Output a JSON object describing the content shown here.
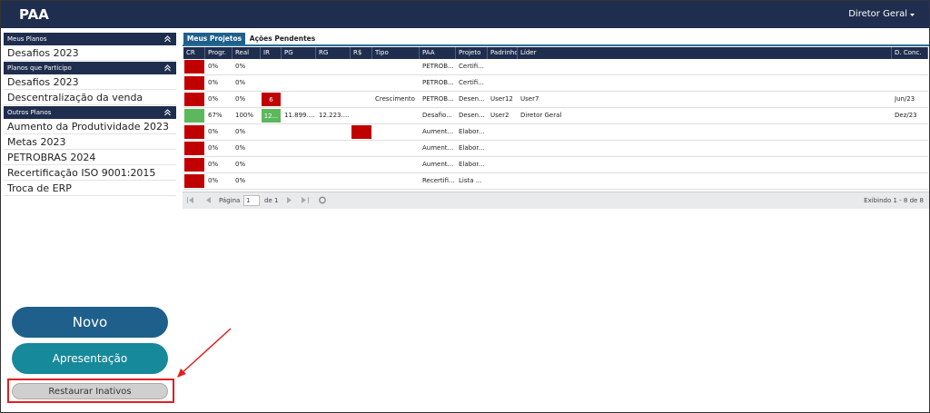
{
  "header": {
    "title": "PAA",
    "user": "Diretor Geral"
  },
  "sidebar": {
    "sections": [
      {
        "title": "Meus Planos",
        "items": [
          "Desafios 2023"
        ]
      },
      {
        "title": "Planos que Participo",
        "items": [
          "Desafios 2023",
          "Descentralização da venda"
        ]
      },
      {
        "title": "Outros Planos",
        "items": [
          "Aumento da Produtividade 2023",
          "Metas 2023",
          "PETROBRAS 2024",
          "Recertificação ISO 9001:2015",
          "Troca de ERP"
        ]
      }
    ]
  },
  "tabs": [
    "Meus Projetos",
    "Ações Pendentes"
  ],
  "table": {
    "columns": [
      "CR",
      "Progr.",
      "Real",
      "IR",
      "PG",
      "RG",
      "R$",
      "Tipo",
      "PAA",
      "Projeto",
      "Padrinho",
      "Líder",
      "D. Conc."
    ],
    "rows": [
      {
        "cr_color": "#c00000",
        "cells": [
          null,
          "0%",
          "0%",
          null,
          null,
          null,
          null,
          null,
          "PETROB...",
          "Certifi...",
          null,
          null,
          null
        ]
      },
      {
        "cr_color": "#c00000",
        "cells": [
          null,
          "0%",
          "0%",
          null,
          null,
          null,
          null,
          null,
          "PETROB...",
          "Certifi...",
          null,
          null,
          null
        ]
      },
      {
        "cr_color": "#c00000",
        "ir_color": "#c00000",
        "cells": [
          null,
          "0%",
          "0%",
          "6",
          null,
          null,
          null,
          "Crescimento",
          "PETROB...",
          "Desen...",
          "User12",
          "User7",
          "Jun/23"
        ]
      },
      {
        "cr_color": "#5cb85c",
        "ir_color": "#5cb85c",
        "cells": [
          null,
          "67%",
          "100%",
          "12...",
          "11.899....",
          "12.223....",
          null,
          null,
          "Desafio...",
          "Desen...",
          "User2",
          "Diretor Geral",
          "Dez/23"
        ]
      },
      {
        "cr_color": "#c00000",
        "rs_color": "#c00000",
        "cells": [
          null,
          "0%",
          "0%",
          null,
          null,
          null,
          null,
          null,
          "Aument...",
          "Elabor...",
          null,
          null,
          null
        ]
      },
      {
        "cr_color": "#c00000",
        "cells": [
          null,
          "0%",
          "0%",
          null,
          null,
          null,
          null,
          null,
          "Aument...",
          "Elabor...",
          null,
          null,
          null
        ]
      },
      {
        "cr_color": "#c00000",
        "cells": [
          null,
          "0%",
          "0%",
          null,
          null,
          null,
          null,
          null,
          "Aument...",
          "Elabor...",
          null,
          null,
          null
        ]
      },
      {
        "cr_color": "#c00000",
        "cells": [
          null,
          "0%",
          "0%",
          null,
          null,
          null,
          null,
          null,
          "Recertifi...",
          "Lista ...",
          null,
          null,
          null
        ]
      }
    ]
  },
  "pager": {
    "page_label": "Página",
    "page": "1",
    "of": "de 1",
    "summary": "Exibindo 1 - 8 de 8"
  },
  "buttons": {
    "new": "Novo",
    "presentation": "Apresentação",
    "restore": "Restaurar Inativos"
  }
}
